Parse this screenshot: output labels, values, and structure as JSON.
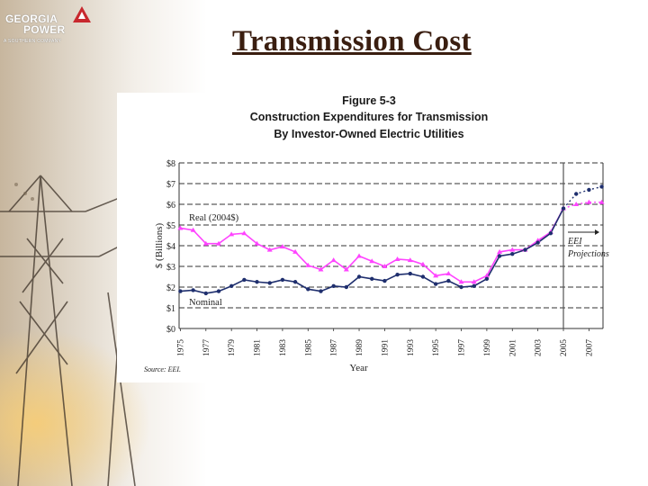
{
  "slide": {
    "title": "Transmission Cost"
  },
  "logo": {
    "line1": "GEORGIA",
    "line2": "POWER",
    "tagline": "A SOUTHERN COMPANY"
  },
  "figure": {
    "label": "Figure 5-3",
    "title_line1": "Construction Expenditures for Transmission",
    "title_line2": "By Investor-Owned Electric Utilities",
    "source": "Source: EEI.",
    "projection_label_1": "EEI",
    "projection_label_2": "Projections"
  },
  "colors": {
    "real_series": "#ff44ff",
    "nominal_series": "#1f2f6e",
    "title": "#3a1e10"
  },
  "chart_data": {
    "type": "line",
    "xlabel": "Year",
    "ylabel": "$ (Billions)",
    "ylim": [
      0,
      8
    ],
    "yticks": [
      "$0",
      "$1",
      "$2",
      "$3",
      "$4",
      "$5",
      "$6",
      "$7",
      "$8"
    ],
    "xticks": [
      "1975",
      "1977",
      "1979",
      "1981",
      "1983",
      "1985",
      "1987",
      "1989",
      "1991",
      "1993",
      "1995",
      "1997",
      "1999",
      "2001",
      "2003",
      "2005",
      "2007"
    ],
    "xlim": [
      1974.9,
      2008.1
    ],
    "grid": "horizontal dashed",
    "projection_start": 2005,
    "series": [
      {
        "name": "Real (2004$)",
        "color": "#ff44ff",
        "x": [
          1975,
          1976,
          1977,
          1978,
          1979,
          1980,
          1981,
          1982,
          1983,
          1984,
          1985,
          1986,
          1987,
          1988,
          1989,
          1990,
          1991,
          1992,
          1993,
          1994,
          1995,
          1996,
          1997,
          1998,
          1999,
          2000,
          2001,
          2002,
          2003,
          2004,
          2005
        ],
        "values": [
          4.85,
          4.75,
          4.1,
          4.1,
          4.55,
          4.6,
          4.1,
          3.8,
          3.95,
          3.7,
          3.05,
          2.85,
          3.3,
          2.85,
          3.5,
          3.25,
          3.0,
          3.35,
          3.3,
          3.1,
          2.55,
          2.65,
          2.25,
          2.25,
          2.55,
          3.7,
          3.8,
          3.8,
          4.25,
          4.65,
          5.8
        ],
        "projection_x": [
          2006,
          2007,
          2008
        ],
        "projection_values": [
          6.0,
          6.1,
          6.1
        ]
      },
      {
        "name": "Nominal",
        "color": "#1f2f6e",
        "x": [
          1975,
          1976,
          1977,
          1978,
          1979,
          1980,
          1981,
          1982,
          1983,
          1984,
          1985,
          1986,
          1987,
          1988,
          1989,
          1990,
          1991,
          1992,
          1993,
          1994,
          1995,
          1996,
          1997,
          1998,
          1999,
          2000,
          2001,
          2002,
          2003,
          2004,
          2005
        ],
        "values": [
          1.8,
          1.85,
          1.7,
          1.8,
          2.05,
          2.35,
          2.25,
          2.2,
          2.35,
          2.25,
          1.9,
          1.8,
          2.05,
          2.0,
          2.5,
          2.4,
          2.3,
          2.6,
          2.65,
          2.5,
          2.15,
          2.3,
          2.0,
          2.05,
          2.4,
          3.5,
          3.6,
          3.8,
          4.15,
          4.6,
          5.8
        ],
        "projection_x": [
          2006,
          2007,
          2008
        ],
        "projection_values": [
          6.5,
          6.7,
          6.85
        ]
      }
    ]
  }
}
